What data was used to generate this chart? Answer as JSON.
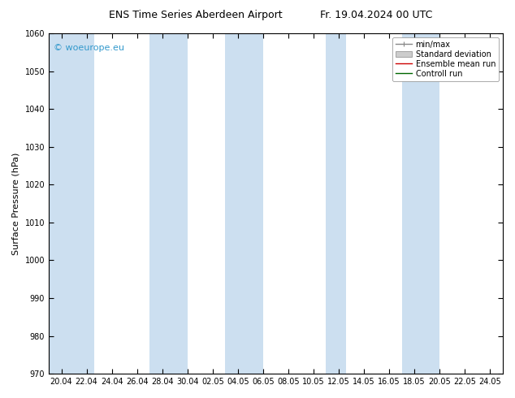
{
  "title_left": "ENS Time Series Aberdeen Airport",
  "title_right": "Fr. 19.04.2024 00 UTC",
  "ylabel": "Surface Pressure (hPa)",
  "ylim": [
    970,
    1060
  ],
  "yticks": [
    970,
    980,
    990,
    1000,
    1010,
    1020,
    1030,
    1040,
    1050,
    1060
  ],
  "xtick_labels": [
    "20.04",
    "22.04",
    "24.04",
    "26.04",
    "28.04",
    "30.04",
    "02.05",
    "04.05",
    "06.05",
    "08.05",
    "10.05",
    "12.05",
    "14.05",
    "16.05",
    "18.05",
    "20.05",
    "22.05",
    "24.05"
  ],
  "band_color": "#ccdff0",
  "background_color": "#ffffff",
  "watermark": "© woeurope.eu",
  "watermark_color": "#3399cc",
  "legend_labels": [
    "min/max",
    "Standard deviation",
    "Ensemble mean run",
    "Controll run"
  ],
  "fig_width": 6.34,
  "fig_height": 4.9,
  "dpi": 100,
  "band_centers": [
    0,
    1,
    4,
    7,
    8,
    11,
    16,
    17
  ],
  "font_size_title": 9,
  "font_size_tick": 7,
  "font_size_ylabel": 8,
  "font_size_legend": 7,
  "font_size_watermark": 8
}
